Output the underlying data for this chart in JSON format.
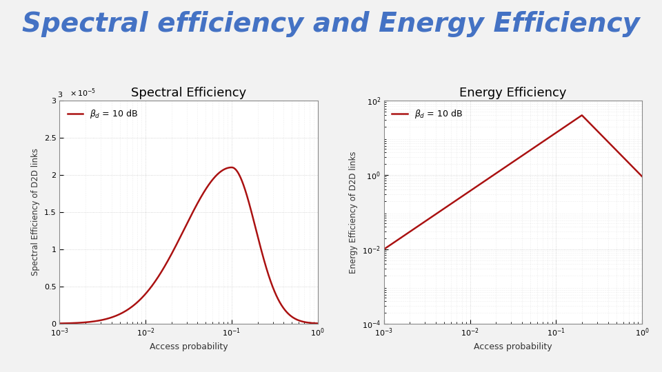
{
  "title": "Spectral efficiency and Energy Efficiency",
  "title_color": "#4472C4",
  "title_fontsize": 28,
  "bg_color": "#F2F2F2",
  "subplot1_title": "Spectral Efficiency",
  "subplot2_title": "Energy Efficiency",
  "subplot_title_fontsize": 13,
  "subplot_title_color": "#000000",
  "xlabel": "Access probability",
  "ylabel1": "Spectral Efficiency of D2D links",
  "ylabel2": "Energy Efficiency of D2D links",
  "line_color": "#AA1111",
  "line_width": 1.8,
  "xlim": [
    0.001,
    1.0
  ],
  "ylim1": [
    0,
    3e-05
  ],
  "ylim2": [
    0.0001,
    100.0
  ],
  "grid_color": "#BBBBBB",
  "ax_bg": "#FFFFFF"
}
